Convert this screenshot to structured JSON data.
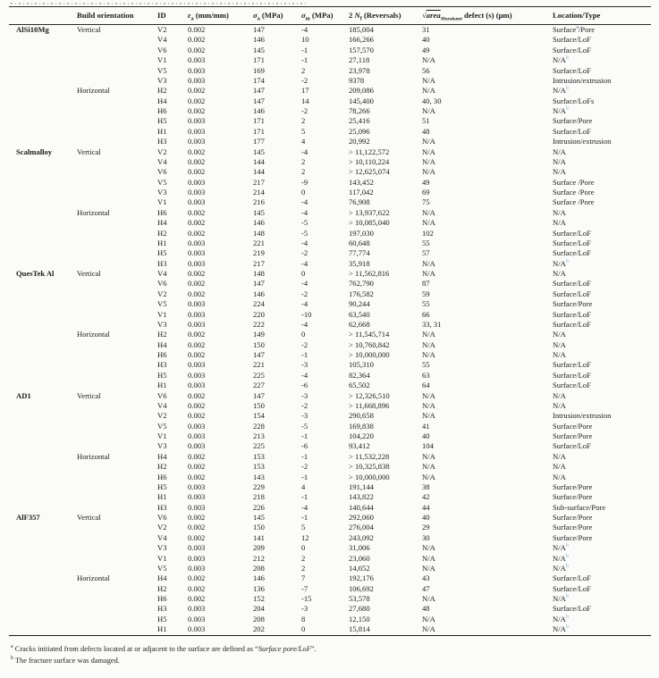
{
  "table": {
    "header": {
      "material": "",
      "orientation": [
        "Build orientation"
      ],
      "id": [
        "ID"
      ],
      "ea": [
        {
          "t": "i",
          "x": "ε"
        },
        {
          "t": "sub",
          "x": "a"
        },
        " (mm/mm)"
      ],
      "sa": [
        {
          "t": "i",
          "x": "σ"
        },
        {
          "t": "sub",
          "x": "a"
        },
        " (MPa)"
      ],
      "sm": [
        {
          "t": "i",
          "x": "σ"
        },
        {
          "t": "sub",
          "x": "m"
        },
        " (MPa)"
      ],
      "nf": [
        "2 ",
        {
          "t": "i",
          "x": "N"
        },
        {
          "t": "sub",
          "x": "f"
        },
        " (Reversals)"
      ],
      "defect": [
        "√",
        {
          "t": "span",
          "x": "area",
          "c": "ov"
        },
        {
          "t": "sub",
          "x": "Murakami",
          "c": "mur"
        },
        " defect (s) (μm)"
      ],
      "loc": [
        "Location/Type"
      ]
    },
    "sections": [
      {
        "material": "AlSi10Mg",
        "groups": [
          {
            "orientation": "Vertical",
            "rows": [
              {
                "id": "V2",
                "ea": "0.002",
                "sa": "147",
                "sm": "-4",
                "nf": "185,004",
                "defect": "31",
                "loc": [
                  "Surface",
                  {
                    "t": "sup",
                    "x": "a",
                    "c": "fa"
                  },
                  "/Pore"
                ]
              },
              {
                "id": "V4",
                "ea": "0.002",
                "sa": "146",
                "sm": "10",
                "nf": "166,266",
                "defect": "40",
                "loc": "Surface/LoF"
              },
              {
                "id": "V6",
                "ea": "0.002",
                "sa": "145",
                "sm": "-1",
                "nf": "157,570",
                "defect": "49",
                "loc": "Surface/LoF"
              },
              {
                "id": "V1",
                "ea": "0.003",
                "sa": "171",
                "sm": "-1",
                "nf": "27,118",
                "defect": "N/A",
                "loc": [
                  "N/A",
                  {
                    "t": "sup",
                    "x": "b",
                    "c": "fb"
                  }
                ]
              },
              {
                "id": "V5",
                "ea": "0.003",
                "sa": "169",
                "sm": "2",
                "nf": "23,978",
                "defect": "56",
                "loc": "Surface/LoF"
              },
              {
                "id": "V3",
                "ea": "0.003",
                "sa": "174",
                "sm": "-2",
                "nf": "9378",
                "defect": "N/A",
                "loc": "Intrusion/extrusion"
              }
            ]
          },
          {
            "orientation": "Horizontal",
            "rows": [
              {
                "id": "H2",
                "ea": "0.002",
                "sa": "147",
                "sm": "17",
                "nf": "209,086",
                "defect": "N/A",
                "loc": [
                  "N/A",
                  {
                    "t": "sup",
                    "x": "b",
                    "c": "fb"
                  }
                ]
              },
              {
                "id": "H4",
                "ea": "0.002",
                "sa": "147",
                "sm": "14",
                "nf": "145,400",
                "defect": "40, 30",
                "loc": "Surface/LoFs"
              },
              {
                "id": "H6",
                "ea": "0.002",
                "sa": "146",
                "sm": "-2",
                "nf": "78,266",
                "defect": "N/A",
                "loc": [
                  "N/A",
                  {
                    "t": "sup",
                    "x": "b",
                    "c": "fb"
                  }
                ]
              },
              {
                "id": "H5",
                "ea": "0.003",
                "sa": "171",
                "sm": "2",
                "nf": "25,416",
                "defect": "51",
                "loc": "Surface/Pore"
              },
              {
                "id": "H1",
                "ea": "0.003",
                "sa": "171",
                "sm": "5",
                "nf": "25,096",
                "defect": "48",
                "loc": "Surface/LoF"
              },
              {
                "id": "H3",
                "ea": "0.003",
                "sa": "177",
                "sm": "4",
                "nf": "20,992",
                "defect": "N/A",
                "loc": "Intrusion/extrusion"
              }
            ]
          }
        ]
      },
      {
        "material": "Scalmalloy",
        "groups": [
          {
            "orientation": "Vertical",
            "rows": [
              {
                "id": "V2",
                "ea": "0.002",
                "sa": "145",
                "sm": "-4",
                "nf": "> 11,122,572",
                "defect": "N/A",
                "loc": "N/A"
              },
              {
                "id": "V4",
                "ea": "0.002",
                "sa": "144",
                "sm": "2",
                "nf": "> 10,110,224",
                "defect": "N/A",
                "loc": "N/A"
              },
              {
                "id": "V6",
                "ea": "0.002",
                "sa": "144",
                "sm": "2",
                "nf": "> 12,625,074",
                "defect": "N/A",
                "loc": "N/A"
              },
              {
                "id": "V5",
                "ea": "0.003",
                "sa": "217",
                "sm": "-9",
                "nf": "143,452",
                "defect": "49",
                "loc": "Surface /Pore"
              },
              {
                "id": "V3",
                "ea": "0.003",
                "sa": "214",
                "sm": "0",
                "nf": "117,042",
                "defect": "69",
                "loc": "Surface /Pore"
              },
              {
                "id": "V1",
                "ea": "0.003",
                "sa": "216",
                "sm": "-4",
                "nf": "76,908",
                "defect": "75",
                "loc": "Surface /Pore"
              }
            ]
          },
          {
            "orientation": "Horizontal",
            "rows": [
              {
                "id": "H6",
                "ea": "0.002",
                "sa": "145",
                "sm": "-4",
                "nf": "> 13,937,622",
                "defect": "N/A",
                "loc": "N/A"
              },
              {
                "id": "H4",
                "ea": "0.002",
                "sa": "146",
                "sm": "-5",
                "nf": "> 10,085,040",
                "defect": "N/A",
                "loc": "N/A"
              },
              {
                "id": "H2",
                "ea": "0.002",
                "sa": "148",
                "sm": "-5",
                "nf": "197,030",
                "defect": "102",
                "loc": "Surface/LoF"
              },
              {
                "id": "H1",
                "ea": "0.003",
                "sa": "221",
                "sm": "-4",
                "nf": "60,648",
                "defect": "55",
                "loc": "Surface/LoF"
              },
              {
                "id": "H5",
                "ea": "0.003",
                "sa": "219",
                "sm": "-2",
                "nf": "77,774",
                "defect": "57",
                "loc": "Surface/LoF"
              },
              {
                "id": "H3",
                "ea": "0.003",
                "sa": "217",
                "sm": "-4",
                "nf": "35,918",
                "defect": "N/A",
                "loc": [
                  "N/A",
                  {
                    "t": "sup",
                    "x": "b",
                    "c": "fb"
                  }
                ]
              }
            ]
          }
        ]
      },
      {
        "material": "QuesTek Al",
        "groups": [
          {
            "orientation": "Vertical",
            "rows": [
              {
                "id": "V4",
                "ea": "0.002",
                "sa": "148",
                "sm": "0",
                "nf": "> 11,562,816",
                "defect": "N/A",
                "loc": "N/A"
              },
              {
                "id": "V6",
                "ea": "0.002",
                "sa": "147",
                "sm": "-4",
                "nf": "762,790",
                "defect": "87",
                "loc": "Surface/LoF"
              },
              {
                "id": "V2",
                "ea": "0.002",
                "sa": "146",
                "sm": "-2",
                "nf": "176,582",
                "defect": "59",
                "loc": "Surface/LoF"
              },
              {
                "id": "V5",
                "ea": "0.003",
                "sa": "224",
                "sm": "-4",
                "nf": "90,244",
                "defect": "55",
                "loc": "Surface/Pore"
              },
              {
                "id": "V1",
                "ea": "0.003",
                "sa": "220",
                "sm": "-10",
                "nf": "63,540",
                "defect": "66",
                "loc": "Surface/LoF"
              },
              {
                "id": "V3",
                "ea": "0.003",
                "sa": "222",
                "sm": "-4",
                "nf": "62,668",
                "defect": "33, 31",
                "loc": "Surface/LoF"
              }
            ]
          },
          {
            "orientation": "Horizontal",
            "rows": [
              {
                "id": "H2",
                "ea": "0.002",
                "sa": "149",
                "sm": "0",
                "nf": "> 11,545,714",
                "defect": "N/A",
                "loc": "N/A"
              },
              {
                "id": "H4",
                "ea": "0.002",
                "sa": "150",
                "sm": "-2",
                "nf": "> 10,760,842",
                "defect": "N/A",
                "loc": "N/A"
              },
              {
                "id": "H6",
                "ea": "0.002",
                "sa": "147",
                "sm": "-1",
                "nf": "> 10,000,000",
                "defect": "N/A",
                "loc": "N/A"
              },
              {
                "id": "H3",
                "ea": "0.003",
                "sa": "221",
                "sm": "-3",
                "nf": "105,310",
                "defect": "55",
                "loc": "Surface/LoF"
              },
              {
                "id": "H5",
                "ea": "0.003",
                "sa": "225",
                "sm": "-4",
                "nf": "82,364",
                "defect": "63",
                "loc": "Surface/LoF"
              },
              {
                "id": "H1",
                "ea": "0.003",
                "sa": "227",
                "sm": "-6",
                "nf": "65,502",
                "defect": "64",
                "loc": "Surface/LoF"
              }
            ]
          }
        ]
      },
      {
        "material": "AD1",
        "groups": [
          {
            "orientation": "Vertical",
            "rows": [
              {
                "id": "V6",
                "ea": "0.002",
                "sa": "147",
                "sm": "-3",
                "nf": "> 12,326,510",
                "defect": "N/A",
                "loc": "N/A"
              },
              {
                "id": "V4",
                "ea": "0.002",
                "sa": "150",
                "sm": "-2",
                "nf": "> 11,668,896",
                "defect": "N/A",
                "loc": "N/A"
              },
              {
                "id": "V2",
                "ea": "0.002",
                "sa": "154",
                "sm": "-3",
                "nf": "290,658",
                "defect": "N/A",
                "loc": "Intrusion/extrusion"
              },
              {
                "id": "V5",
                "ea": "0.003",
                "sa": "228",
                "sm": "-5",
                "nf": "169,838",
                "defect": "41",
                "loc": "Surface/Pore"
              },
              {
                "id": "V1",
                "ea": "0.003",
                "sa": "213",
                "sm": "-1",
                "nf": "104,220",
                "defect": "40",
                "loc": "Surface/Pore"
              },
              {
                "id": "V3",
                "ea": "0.003",
                "sa": "225",
                "sm": "-6",
                "nf": "93,412",
                "defect": "104",
                "loc": "Surface/LoF"
              }
            ]
          },
          {
            "orientation": "Horizontal",
            "rows": [
              {
                "id": "H4",
                "ea": "0.002",
                "sa": "153",
                "sm": "-1",
                "nf": "> 11,532,228",
                "defect": "N/A",
                "loc": "N/A"
              },
              {
                "id": "H2",
                "ea": "0.002",
                "sa": "153",
                "sm": "-2",
                "nf": "> 10,325,838",
                "defect": "N/A",
                "loc": "N/A"
              },
              {
                "id": "H6",
                "ea": "0.002",
                "sa": "143",
                "sm": "-1",
                "nf": "> 10,000,000",
                "defect": "N/A",
                "loc": "N/A"
              },
              {
                "id": "H5",
                "ea": "0.003",
                "sa": "229",
                "sm": "4",
                "nf": "191,144",
                "defect": "38",
                "loc": "Surface/Pore"
              },
              {
                "id": "H1",
                "ea": "0.003",
                "sa": "218",
                "sm": "-1",
                "nf": "143,822",
                "defect": "42",
                "loc": "Surface/Pore"
              },
              {
                "id": "H3",
                "ea": "0.003",
                "sa": "226",
                "sm": "-4",
                "nf": "140,644",
                "defect": "44",
                "loc": "Sub-surface/Pore"
              }
            ]
          }
        ]
      },
      {
        "material": "AlF357",
        "groups": [
          {
            "orientation": "Vertical",
            "rows": [
              {
                "id": "V6",
                "ea": "0.002",
                "sa": "145",
                "sm": "-1",
                "nf": "292,060",
                "defect": "40",
                "loc": "Surface/Pore"
              },
              {
                "id": "V2",
                "ea": "0.002",
                "sa": "150",
                "sm": "5",
                "nf": "276,004",
                "defect": "29",
                "loc": "Surface/Pore"
              },
              {
                "id": "V4",
                "ea": "0.002",
                "sa": "141",
                "sm": "12",
                "nf": "243,092",
                "defect": "30",
                "loc": "Surface/Pore"
              },
              {
                "id": "V3",
                "ea": "0.003",
                "sa": "209",
                "sm": "0",
                "nf": "31,006",
                "defect": "N/A",
                "loc": [
                  "N/A",
                  {
                    "t": "sup",
                    "x": "b",
                    "c": "fb"
                  }
                ]
              },
              {
                "id": "V1",
                "ea": "0.003",
                "sa": "212",
                "sm": "2",
                "nf": "23,060",
                "defect": "N/A",
                "loc": [
                  "N/A",
                  {
                    "t": "sup",
                    "x": "b",
                    "c": "fb"
                  }
                ]
              },
              {
                "id": "V5",
                "ea": "0.003",
                "sa": "208",
                "sm": "2",
                "nf": "14,652",
                "defect": "N/A",
                "loc": [
                  "N/A",
                  {
                    "t": "sup",
                    "x": "b",
                    "c": "fb"
                  }
                ]
              }
            ]
          },
          {
            "orientation": "Horizontal",
            "rows": [
              {
                "id": "H4",
                "ea": "0.002",
                "sa": "146",
                "sm": "7",
                "nf": "192,176",
                "defect": "43",
                "loc": "Surface/LoF"
              },
              {
                "id": "H2",
                "ea": "0.002",
                "sa": "136",
                "sm": "-7",
                "nf": "106,692",
                "defect": "47",
                "loc": "Surface/LoF"
              },
              {
                "id": "H6",
                "ea": "0.002",
                "sa": "152",
                "sm": "-15",
                "nf": "53,578",
                "defect": "N/A",
                "loc": [
                  "N/A",
                  {
                    "t": "sup",
                    "x": "b",
                    "c": "fb"
                  }
                ]
              },
              {
                "id": "H3",
                "ea": "0.003",
                "sa": "204",
                "sm": "-3",
                "nf": "27,680",
                "defect": "48",
                "loc": "Surface/LoF"
              },
              {
                "id": "H5",
                "ea": "0.003",
                "sa": "208",
                "sm": "8",
                "nf": "12,150",
                "defect": "N/A",
                "loc": [
                  "N/A",
                  {
                    "t": "sup",
                    "x": "b",
                    "c": "fb"
                  }
                ]
              },
              {
                "id": "H1",
                "ea": "0.003",
                "sa": "202",
                "sm": "0",
                "nf": "15,814",
                "defect": "N/A",
                "loc": [
                  "N/A",
                  {
                    "t": "sup",
                    "x": "b",
                    "c": "fb"
                  }
                ]
              }
            ]
          }
        ]
      }
    ]
  },
  "footnotes": [
    [
      {
        "t": "sup",
        "x": "a"
      },
      "  Cracks initiated from defects located at or adjacent to the surface are defined as “",
      {
        "t": "i",
        "x": "Surface pore/LoF"
      },
      "”."
    ],
    [
      {
        "t": "sup",
        "x": "b"
      },
      "  The fracture surface was damaged."
    ]
  ]
}
